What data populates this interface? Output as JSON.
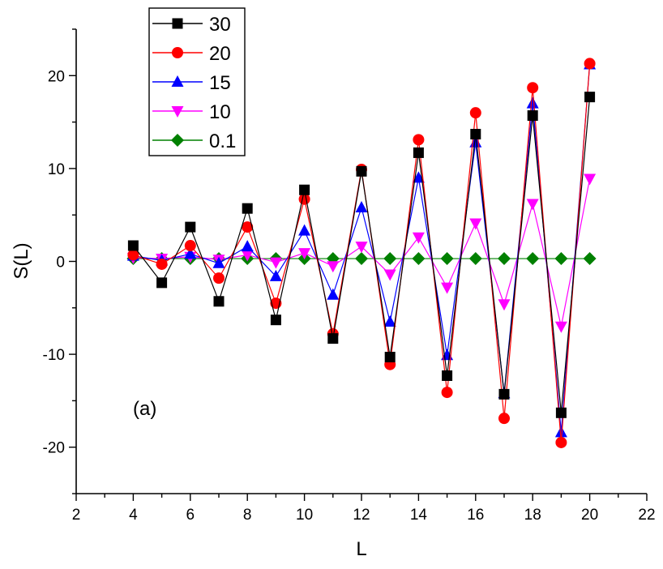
{
  "chart_data": {
    "type": "line",
    "title": "",
    "xlabel": "L",
    "ylabel": "S(L)",
    "xlim": [
      2,
      22
    ],
    "ylim": [
      -25,
      25
    ],
    "x_ticks": [
      2,
      4,
      6,
      8,
      10,
      12,
      14,
      16,
      18,
      20,
      22
    ],
    "y_ticks": [
      -20,
      -10,
      0,
      10,
      20
    ],
    "grid": false,
    "legend_position": "top-left",
    "annotation": "(a)",
    "x": [
      4,
      5,
      6,
      7,
      8,
      9,
      10,
      11,
      12,
      13,
      14,
      15,
      16,
      17,
      18,
      19,
      20
    ],
    "series": [
      {
        "name": "30",
        "color": "#000000",
        "marker": "square",
        "values": [
          1.7,
          -2.3,
          3.7,
          -4.3,
          5.7,
          -6.3,
          7.7,
          -8.3,
          9.7,
          -10.3,
          11.7,
          -12.3,
          13.7,
          -14.3,
          15.7,
          -16.3,
          17.7
        ]
      },
      {
        "name": "20",
        "color": "#ff0000",
        "marker": "circle",
        "values": [
          0.7,
          -0.3,
          1.7,
          -1.8,
          3.7,
          -4.5,
          6.7,
          -7.8,
          9.9,
          -11.1,
          13.1,
          -14.1,
          16.0,
          -16.9,
          18.7,
          -19.5,
          21.3
        ]
      },
      {
        "name": "15",
        "color": "#0000ff",
        "marker": "triangle-up",
        "values": [
          0.6,
          0.1,
          0.8,
          -0.2,
          1.6,
          -1.6,
          3.3,
          -3.6,
          5.8,
          -6.5,
          9.0,
          -10.1,
          12.8,
          -14.2,
          17.0,
          -18.4,
          21.2
        ]
      },
      {
        "name": "10",
        "color": "#ff00ff",
        "marker": "triangle-down",
        "values": [
          0.4,
          0.3,
          0.5,
          0.2,
          0.7,
          -0.1,
          0.9,
          -0.5,
          1.6,
          -1.4,
          2.6,
          -2.8,
          4.1,
          -4.6,
          6.2,
          -7.0,
          8.9
        ]
      },
      {
        "name": "0.1",
        "color": "#008000",
        "marker": "diamond",
        "values": [
          0.3,
          0.3,
          0.3,
          0.3,
          0.3,
          0.3,
          0.3,
          0.3,
          0.3,
          0.3,
          0.3,
          0.3,
          0.3,
          0.3,
          0.3,
          0.3,
          0.3
        ]
      }
    ]
  }
}
